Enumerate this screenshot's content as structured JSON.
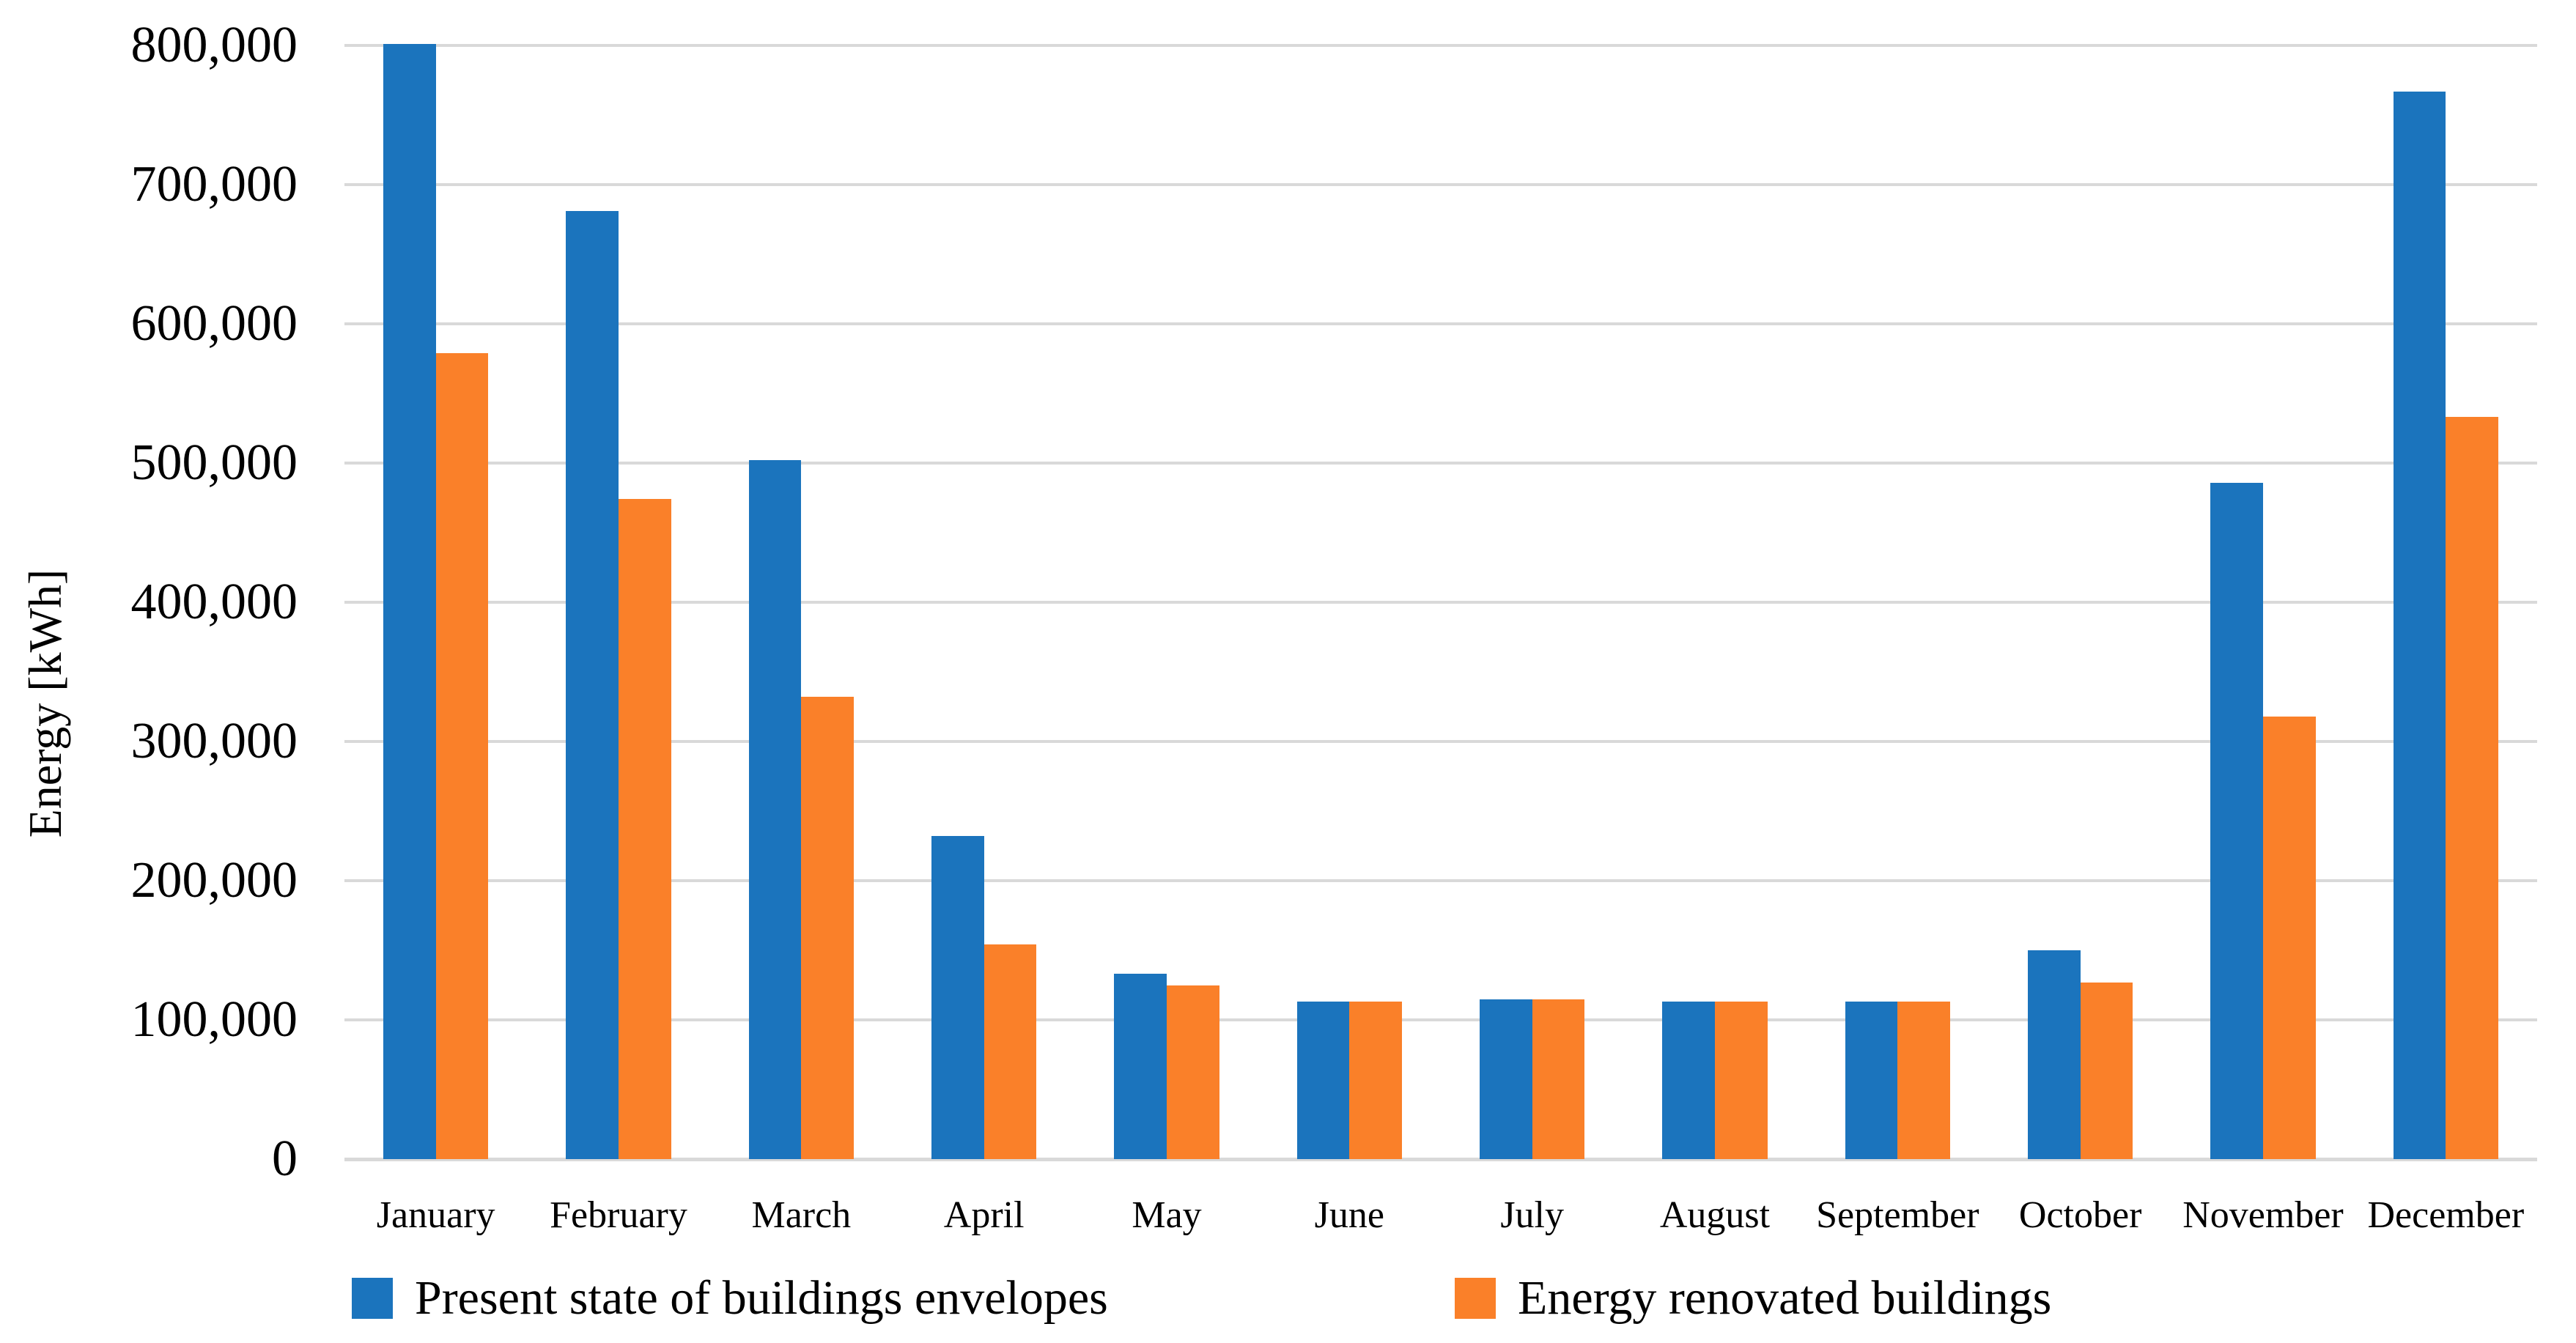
{
  "chart_data": {
    "type": "bar",
    "title": "",
    "xlabel": "",
    "ylabel": "Energy [kWh]",
    "categories": [
      "January",
      "February",
      "March",
      "April",
      "May",
      "June",
      "July",
      "August",
      "September",
      "October",
      "November",
      "December"
    ],
    "series": [
      {
        "name": "Present state of buildings envelopes",
        "color": "#1B74BD",
        "values": [
          801000,
          681000,
          502000,
          232000,
          133000,
          113000,
          115000,
          113000,
          113000,
          150000,
          486000,
          767000
        ]
      },
      {
        "name": "Energy renovated buildings",
        "color": "#FA8029",
        "values": [
          579000,
          474000,
          332000,
          154000,
          125000,
          113000,
          115000,
          113000,
          113000,
          127000,
          318000,
          533000
        ]
      }
    ],
    "ylim": [
      0,
      800000
    ],
    "y_tick_step": 100000,
    "y_tick_labels": [
      "0",
      "100,000",
      "200,000",
      "300,000",
      "400,000",
      "500,000",
      "600,000",
      "700,000",
      "800,000"
    ],
    "grid": "horizontal",
    "gridline_color": "#D9D9D9",
    "legend_position": "bottom",
    "background": "#FFFFFF"
  }
}
